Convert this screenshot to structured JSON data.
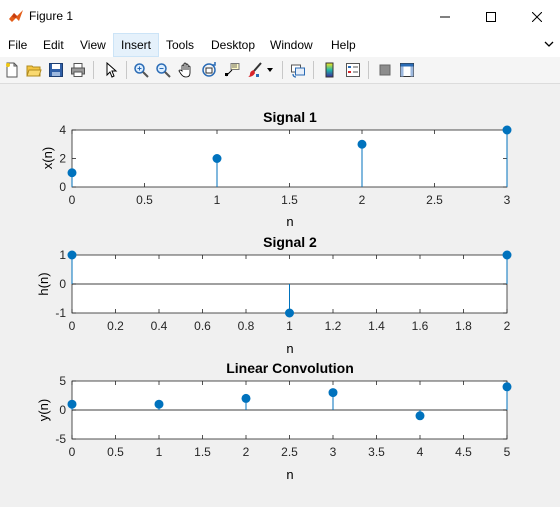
{
  "window": {
    "title": "Figure 1",
    "icon": "matlab-icon",
    "controls": [
      "minimize-icon",
      "maximize-icon",
      "close-icon"
    ]
  },
  "menu": {
    "items": [
      {
        "label": "File"
      },
      {
        "label": "Edit"
      },
      {
        "label": "View"
      },
      {
        "label": "Insert",
        "active": true
      },
      {
        "label": "Tools"
      },
      {
        "label": "Desktop"
      },
      {
        "label": "Window"
      },
      {
        "label": "Help"
      }
    ]
  },
  "toolbar": {
    "buttons": [
      "new-figure-icon",
      "open-file-icon",
      "save-icon",
      "print-icon",
      "edit-plot-arrow-icon",
      "zoom-in-icon",
      "zoom-out-icon",
      "pan-hand-icon",
      "rotate-3d-icon",
      "data-cursor-icon",
      "brush-icon",
      "brush-dropdown-icon",
      "link-plot-icon",
      "insert-colorbar-icon",
      "insert-legend-icon",
      "hide-plot-tools-icon",
      "show-plot-tools-icon"
    ]
  },
  "colors": {
    "stem": "#0072bd",
    "axes_bg": "#ffffff",
    "figure_bg": "#f0f0f0"
  },
  "chart_data": [
    {
      "type": "stem",
      "title": "Signal 1",
      "xlabel": "n",
      "ylabel": "x(n)",
      "x": [
        0,
        1,
        2,
        3
      ],
      "values": [
        1,
        2,
        3,
        4
      ],
      "xlim": [
        0,
        3
      ],
      "ylim": [
        0,
        4
      ],
      "xticks": [
        "0",
        "0.5",
        "1",
        "1.5",
        "2",
        "2.5",
        "3"
      ],
      "yticks": [
        "0",
        "2",
        "4"
      ],
      "baseline": false
    },
    {
      "type": "stem",
      "title": "Signal 2",
      "xlabel": "n",
      "ylabel": "h(n)",
      "x": [
        0,
        1,
        2
      ],
      "values": [
        1,
        -1,
        1
      ],
      "xlim": [
        0,
        2
      ],
      "ylim": [
        -1,
        1
      ],
      "xticks": [
        "0",
        "0.2",
        "0.4",
        "0.6",
        "0.8",
        "1",
        "1.2",
        "1.4",
        "1.6",
        "1.8",
        "2"
      ],
      "yticks": [
        "-1",
        "0",
        "1"
      ],
      "baseline": true
    },
    {
      "type": "stem",
      "title": "Linear Convolution",
      "xlabel": "n",
      "ylabel": "y(n)",
      "x": [
        0,
        1,
        2,
        3,
        4,
        5
      ],
      "values": [
        1,
        1,
        2,
        3,
        -1,
        4
      ],
      "xlim": [
        0,
        5
      ],
      "ylim": [
        -5,
        5
      ],
      "xticks": [
        "0",
        "0.5",
        "1",
        "1.5",
        "2",
        "2.5",
        "3",
        "3.5",
        "4",
        "4.5",
        "5"
      ],
      "yticks": [
        "-5",
        "0",
        "5"
      ],
      "baseline": true
    }
  ]
}
